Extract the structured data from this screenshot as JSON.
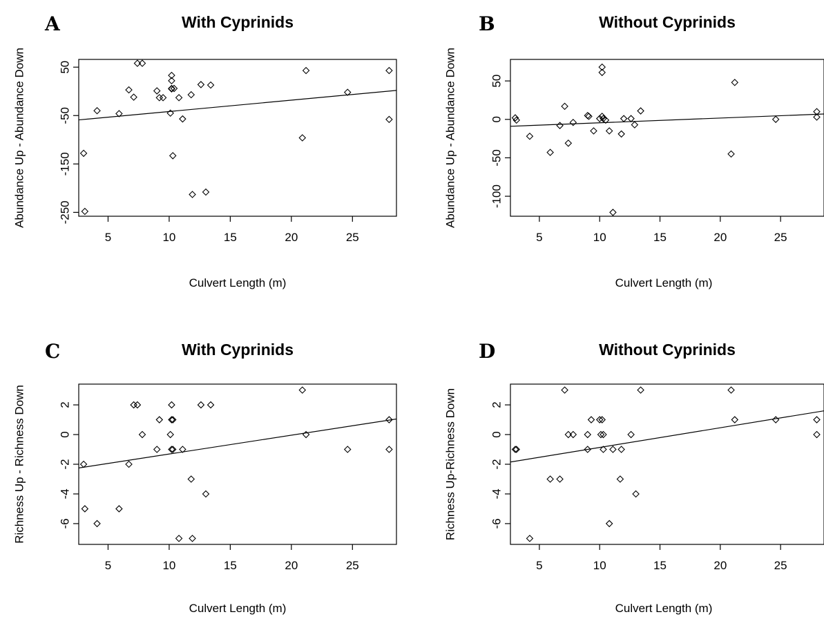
{
  "chart_data": [
    {
      "type": "scatter",
      "panel_letter": "A",
      "title": "With Cyprinids",
      "xlabel": "Culvert Length (m)",
      "ylabel": "Abundance Up - Abundance Down",
      "xlim": [
        2.6,
        28.6
      ],
      "ylim": [
        -258,
        66
      ],
      "xticks": [
        5,
        10,
        15,
        20,
        25
      ],
      "yticks": [
        50,
        -50,
        -150,
        -250
      ],
      "points": [
        [
          7.4,
          58
        ],
        [
          7.8,
          58
        ],
        [
          10.2,
          33
        ],
        [
          10.2,
          22
        ],
        [
          12.6,
          14
        ],
        [
          13.4,
          13
        ],
        [
          10.2,
          6
        ],
        [
          10.4,
          6
        ],
        [
          6.7,
          3
        ],
        [
          9.0,
          1
        ],
        [
          21.2,
          43
        ],
        [
          28.0,
          43
        ],
        [
          24.6,
          -2
        ],
        [
          10.2,
          5
        ],
        [
          7.1,
          -12
        ],
        [
          9.2,
          -13
        ],
        [
          9.5,
          -13
        ],
        [
          11.8,
          -7
        ],
        [
          10.8,
          -13
        ],
        [
          4.1,
          -40
        ],
        [
          5.9,
          -46
        ],
        [
          10.1,
          -45
        ],
        [
          11.1,
          -57
        ],
        [
          28.0,
          -58
        ],
        [
          20.9,
          -96
        ],
        [
          3.0,
          -128
        ],
        [
          10.3,
          -133
        ],
        [
          11.9,
          -213
        ],
        [
          13.0,
          -208
        ],
        [
          3.1,
          -248
        ]
      ],
      "trend": {
        "x": [
          2.6,
          28.6
        ],
        "y": [
          -59,
          2
        ]
      }
    },
    {
      "type": "scatter",
      "panel_letter": "B",
      "title": "Without Cyprinids",
      "xlabel": "Culvert Length (m)",
      "ylabel": "Abundance Up - Abundance Down",
      "xlim": [
        2.6,
        28.6
      ],
      "ylim": [
        -126,
        78
      ],
      "xticks": [
        5,
        10,
        15,
        20,
        25
      ],
      "yticks": [
        50,
        0,
        -50,
        -100
      ],
      "points": [
        [
          3.0,
          2
        ],
        [
          3.1,
          -1
        ],
        [
          4.2,
          -22
        ],
        [
          5.9,
          -43
        ],
        [
          6.7,
          -8
        ],
        [
          7.1,
          17
        ],
        [
          7.4,
          -31
        ],
        [
          7.8,
          -4
        ],
        [
          9.0,
          5
        ],
        [
          9.1,
          4
        ],
        [
          9.5,
          -15
        ],
        [
          10.0,
          1
        ],
        [
          10.2,
          68
        ],
        [
          10.2,
          61
        ],
        [
          10.2,
          4
        ],
        [
          10.3,
          1
        ],
        [
          10.5,
          -1
        ],
        [
          10.8,
          -15
        ],
        [
          11.1,
          -121
        ],
        [
          11.8,
          -19
        ],
        [
          12.0,
          1
        ],
        [
          12.6,
          1
        ],
        [
          12.9,
          -7
        ],
        [
          13.4,
          11
        ],
        [
          20.9,
          -45
        ],
        [
          21.2,
          48
        ],
        [
          24.6,
          0
        ],
        [
          28.0,
          10
        ],
        [
          28.0,
          3
        ]
      ],
      "trend": {
        "x": [
          2.6,
          28.6
        ],
        "y": [
          -9,
          7
        ]
      }
    },
    {
      "type": "scatter",
      "panel_letter": "C",
      "title": "With Cyprinids",
      "xlabel": "Culvert Length (m)",
      "ylabel": "Richness Up - Richness Down",
      "xlim": [
        2.6,
        28.6
      ],
      "ylim": [
        -7.4,
        3.4
      ],
      "xticks": [
        5,
        10,
        15,
        20,
        25
      ],
      "yticks": [
        2,
        0,
        -2,
        -4,
        -6
      ],
      "points": [
        [
          3.0,
          -2
        ],
        [
          3.1,
          -5
        ],
        [
          4.1,
          -6
        ],
        [
          5.9,
          -5
        ],
        [
          6.7,
          -2
        ],
        [
          7.1,
          2
        ],
        [
          7.4,
          2
        ],
        [
          7.8,
          0
        ],
        [
          9.0,
          -1
        ],
        [
          9.2,
          1
        ],
        [
          10.1,
          0
        ],
        [
          10.2,
          2
        ],
        [
          10.2,
          1
        ],
        [
          10.3,
          1
        ],
        [
          10.2,
          -1
        ],
        [
          10.3,
          -1
        ],
        [
          10.8,
          -7
        ],
        [
          11.1,
          -1
        ],
        [
          11.8,
          -3
        ],
        [
          11.9,
          -7
        ],
        [
          12.6,
          2
        ],
        [
          13.0,
          -4
        ],
        [
          13.4,
          2
        ],
        [
          20.9,
          3
        ],
        [
          21.2,
          0
        ],
        [
          24.6,
          -1
        ],
        [
          28.0,
          1
        ],
        [
          28.0,
          -1
        ]
      ],
      "trend": {
        "x": [
          2.6,
          28.6
        ],
        "y": [
          -2.25,
          1.05
        ]
      }
    },
    {
      "type": "scatter",
      "panel_letter": "D",
      "title": "Without Cyprinids",
      "xlabel": "Culvert Length (m)",
      "ylabel": "Richness Up-Richness Down",
      "xlim": [
        2.6,
        28.6
      ],
      "ylim": [
        -7.4,
        3.4
      ],
      "xticks": [
        5,
        10,
        15,
        20,
        25
      ],
      "yticks": [
        2,
        0,
        -2,
        -4,
        -6
      ],
      "points": [
        [
          3.0,
          -1
        ],
        [
          3.1,
          -1
        ],
        [
          4.2,
          -7
        ],
        [
          5.9,
          -3
        ],
        [
          6.7,
          -3
        ],
        [
          7.1,
          3
        ],
        [
          7.4,
          0
        ],
        [
          7.8,
          0
        ],
        [
          9.0,
          0
        ],
        [
          9.0,
          -1
        ],
        [
          9.3,
          1
        ],
        [
          10.0,
          1
        ],
        [
          10.2,
          1
        ],
        [
          10.3,
          0
        ],
        [
          10.1,
          0
        ],
        [
          10.3,
          -1
        ],
        [
          10.8,
          -6
        ],
        [
          11.1,
          -1
        ],
        [
          11.8,
          -1
        ],
        [
          11.7,
          -3
        ],
        [
          12.6,
          0
        ],
        [
          13.0,
          -4
        ],
        [
          13.4,
          3
        ],
        [
          20.9,
          3
        ],
        [
          21.2,
          1
        ],
        [
          24.6,
          1
        ],
        [
          28.0,
          1
        ],
        [
          28.0,
          0
        ]
      ],
      "trend": {
        "x": [
          2.6,
          28.6
        ],
        "y": [
          -1.85,
          1.6
        ]
      }
    }
  ]
}
